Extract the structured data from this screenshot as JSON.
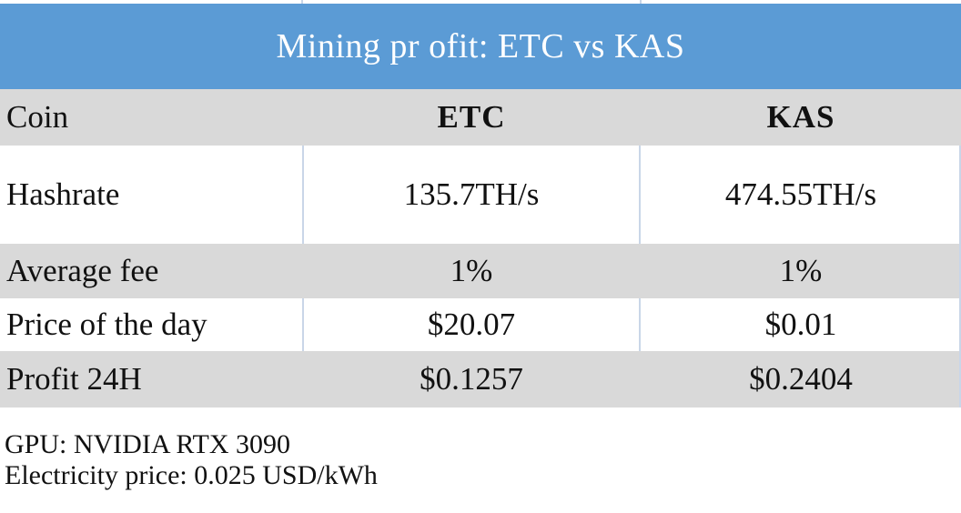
{
  "title": "Mining pr ofit: ETC vs KAS",
  "header": {
    "label": "Coin",
    "col1": "ETC",
    "col2": "KAS"
  },
  "rows": [
    {
      "label": "Hashrate",
      "etc": "135.7TH/s",
      "kas": "474.55TH/s"
    },
    {
      "label": "Average fee",
      "etc": "1%",
      "kas": "1%"
    },
    {
      "label": "Price of the day",
      "etc": "$20.07",
      "kas": "$0.01"
    },
    {
      "label": "Profit 24H",
      "etc": "$0.1257",
      "kas": "$0.2404"
    }
  ],
  "footer": {
    "gpu": "GPU: NVIDIA RTX 3090",
    "electricity": "Electricity price: 0.025 USD/kWh"
  },
  "colors": {
    "title_bg": "#5b9bd5",
    "row_gray": "#d9d9d9",
    "row_white": "#ffffff",
    "grid_line": "#c9d6e8"
  }
}
